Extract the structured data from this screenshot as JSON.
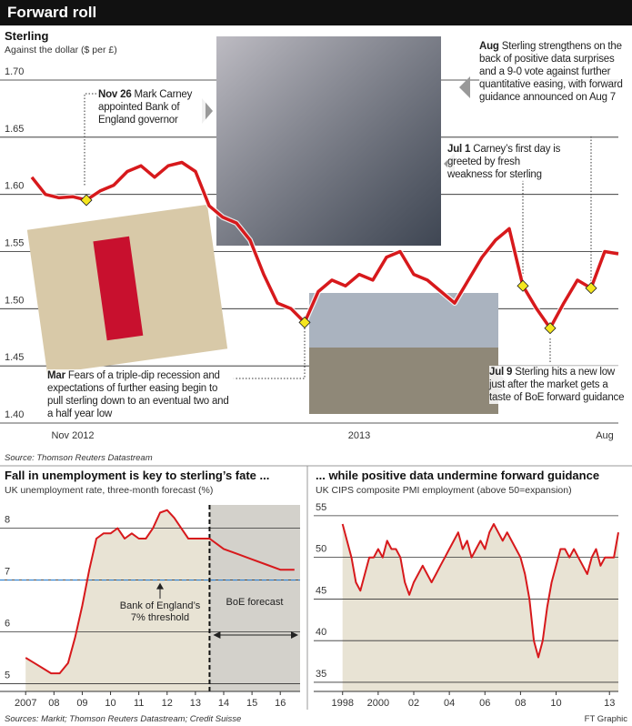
{
  "title": "Forward roll",
  "sources": "Sources: Markit; Thomson Reuters Datastream; Credit Suisse",
  "credit": "FT Graphic",
  "chart_data": [
    {
      "type": "line",
      "title": "Sterling",
      "subtitle": "Against the dollar ($ per £)",
      "categories": [
        null,
        null,
        null,
        "Nov 2012",
        null,
        null,
        null,
        null,
        null,
        null,
        null,
        null,
        null,
        null,
        null,
        null,
        null,
        null,
        null,
        null,
        null,
        null,
        null,
        null,
        "2013",
        null,
        null,
        null,
        null,
        null,
        null,
        null,
        null,
        null,
        null,
        null,
        null,
        null,
        null,
        null,
        null,
        null,
        "Aug",
        null
      ],
      "values": [
        1.615,
        1.6,
        1.597,
        1.598,
        1.595,
        1.603,
        1.608,
        1.62,
        1.625,
        1.615,
        1.625,
        1.628,
        1.62,
        1.59,
        1.58,
        1.575,
        1.56,
        1.53,
        1.505,
        1.5,
        1.488,
        1.515,
        1.525,
        1.52,
        1.53,
        1.525,
        1.545,
        1.55,
        1.53,
        1.525,
        1.515,
        1.505,
        1.525,
        1.545,
        1.56,
        1.57,
        1.52,
        1.5,
        1.483,
        1.505,
        1.525,
        1.518,
        1.55,
        1.548
      ],
      "color": "#d7191c",
      "ylim": [
        1.4,
        1.7
      ],
      "yticks": [
        {
          "value": 1.4,
          "label": "1.40"
        },
        1.45,
        {
          "value": 1.5,
          "label": "1.50"
        },
        1.55,
        {
          "value": 1.6,
          "label": "1.60"
        },
        1.65,
        {
          "value": 1.7,
          "label": "1.70"
        }
      ],
      "grid": true,
      "annotations": [
        {
          "label": "Nov 26",
          "text": "Mark Carney appointed Bank of England governor"
        },
        {
          "label": "Mar",
          "text": "Fears of a triple-dip recession and expectations of further easing begin to pull sterling down to an eventual two and a half year low"
        },
        {
          "label": "Jul 1",
          "text": "Carney’s first day is greeted by fresh weakness for sterling"
        },
        {
          "label": "Jul 9",
          "text": "Sterling hits a new low just after the market gets a taste of BoE forward guidance"
        },
        {
          "label": "Aug",
          "text": "Sterling strengthens on the back of positive data surprises and a 9-0 vote against further quantitative easing, with forward guidance announced on Aug 7"
        }
      ],
      "source": "Source: Thomson Reuters Datastream"
    },
    {
      "type": "line",
      "title": "Fall in unemployment is key to sterling’s fate ...",
      "subtitle": "UK unemployment rate, three-month forecast (%)",
      "x": [
        2007.0,
        2007.3,
        2007.6,
        2007.9,
        2008.2,
        2008.5,
        2008.75,
        2009.0,
        2009.25,
        2009.5,
        2009.75,
        2010.0,
        2010.25,
        2010.5,
        2010.75,
        2011.0,
        2011.25,
        2011.5,
        2011.75,
        2012.0,
        2012.25,
        2012.5,
        2012.75,
        2013.0,
        2013.25,
        2013.5,
        2013.75,
        2014.0,
        2014.5,
        2015.0,
        2015.5,
        2016.0,
        2016.5
      ],
      "values": [
        5.5,
        5.4,
        5.3,
        5.2,
        5.2,
        5.4,
        5.9,
        6.5,
        7.2,
        7.8,
        7.9,
        7.9,
        8.0,
        7.8,
        7.9,
        7.8,
        7.8,
        8.0,
        8.3,
        8.35,
        8.2,
        8.0,
        7.8,
        7.8,
        7.8,
        7.8,
        7.7,
        7.6,
        7.5,
        7.4,
        7.3,
        7.2,
        7.2
      ],
      "color": "#d7191c",
      "area_color": "#e8e3d4",
      "forecast_start": 2013.5,
      "threshold": 7,
      "annotations": [
        "Bank of England’s 7% threshold",
        "BoE forecast"
      ],
      "xlim": [
        2006.8,
        2016.7
      ],
      "xticks": [
        2007,
        {
          "value": 2008,
          "label": "08"
        },
        {
          "value": 2009,
          "label": "09"
        },
        {
          "value": 2010,
          "label": "10"
        },
        {
          "value": 2011,
          "label": "11"
        },
        {
          "value": 2012,
          "label": "12"
        },
        {
          "value": 2013,
          "label": "13"
        },
        {
          "value": 2014,
          "label": "14"
        },
        {
          "value": 2015,
          "label": "15"
        },
        {
          "value": 2016,
          "label": "16"
        }
      ],
      "ylim": [
        4.85,
        8.45
      ],
      "yticks": [
        5,
        6,
        7,
        8
      ],
      "grid": true
    },
    {
      "type": "line",
      "title": "... while positive data undermine forward guidance",
      "subtitle": "UK CIPS composite PMI employment (above 50=expansion)",
      "x": [
        1998.0,
        1998.25,
        1998.5,
        1998.75,
        1999.0,
        1999.25,
        1999.5,
        1999.75,
        2000.0,
        2000.25,
        2000.5,
        2000.75,
        2001.0,
        2001.25,
        2001.5,
        2001.75,
        2002.0,
        2002.25,
        2002.5,
        2002.75,
        2003.0,
        2003.25,
        2003.5,
        2003.75,
        2004.0,
        2004.25,
        2004.5,
        2004.75,
        2005.0,
        2005.25,
        2005.5,
        2005.75,
        2006.0,
        2006.25,
        2006.5,
        2006.75,
        2007.0,
        2007.25,
        2007.5,
        2007.75,
        2008.0,
        2008.25,
        2008.5,
        2008.75,
        2009.0,
        2009.25,
        2009.5,
        2009.75,
        2010.0,
        2010.25,
        2010.5,
        2010.75,
        2011.0,
        2011.25,
        2011.5,
        2011.75,
        2012.0,
        2012.25,
        2012.5,
        2012.75,
        2013.0,
        2013.25,
        2013.5
      ],
      "values": [
        54,
        52,
        50,
        47,
        46,
        48,
        50,
        50,
        51,
        50,
        52,
        51,
        51,
        50,
        47,
        45.5,
        47,
        48,
        49,
        48,
        47,
        48,
        49,
        50,
        51,
        52,
        53,
        51,
        52,
        50,
        51,
        52,
        51,
        53,
        54,
        53,
        52,
        53,
        52,
        51,
        50,
        48,
        45,
        40,
        38,
        40,
        44,
        47,
        49,
        51,
        51,
        50,
        51,
        50,
        49,
        48,
        50,
        51,
        49,
        50,
        50,
        50,
        53
      ],
      "color": "#d7191c",
      "area_color": "#e8e3d4",
      "xlim": [
        1997.4,
        2013.5
      ],
      "xticks": [
        1998,
        2000,
        {
          "value": 2002,
          "label": "02"
        },
        {
          "value": 2004,
          "label": "04"
        },
        {
          "value": 2006,
          "label": "06"
        },
        {
          "value": 2008,
          "label": "08"
        },
        {
          "value": 2010,
          "label": "10"
        },
        {
          "value": 2013,
          "label": "13"
        }
      ],
      "ylim": [
        33.9,
        56.3
      ],
      "yticks": [
        35,
        40,
        45,
        50,
        55
      ],
      "grid": true
    }
  ]
}
